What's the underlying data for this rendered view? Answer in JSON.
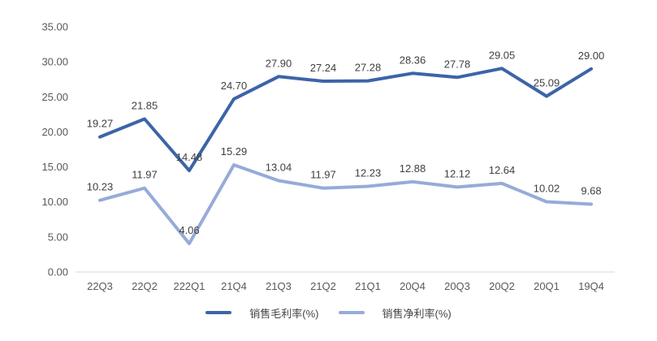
{
  "chart_data": {
    "type": "line",
    "title": "",
    "xlabel": "",
    "ylabel": "",
    "categories": [
      "22Q3",
      "22Q2",
      "222Q1",
      "21Q4",
      "21Q3",
      "21Q2",
      "21Q1",
      "20Q4",
      "20Q3",
      "20Q2",
      "20Q1",
      "19Q4"
    ],
    "series": [
      {
        "name": "销售毛利率(%)",
        "color": "#3C64A8",
        "values": [
          19.27,
          21.85,
          14.48,
          24.7,
          27.9,
          27.24,
          27.28,
          28.36,
          27.78,
          29.05,
          25.09,
          29.0
        ]
      },
      {
        "name": "销售净利率(%)",
        "color": "#96ABD8",
        "values": [
          10.23,
          11.97,
          4.06,
          15.29,
          13.04,
          11.97,
          12.23,
          12.88,
          12.12,
          12.64,
          10.02,
          9.68
        ]
      }
    ],
    "ylim": [
      0,
      35
    ],
    "ytick_step": 5,
    "ytick_labels": [
      "0.00",
      "5.00",
      "10.00",
      "15.00",
      "20.00",
      "25.00",
      "30.00",
      "35.00"
    ],
    "grid": false,
    "legend_position": "bottom",
    "data_labels_visible": true
  },
  "style": {
    "axis_line_color": "#D9D9D9",
    "tick_label_color": "#595959",
    "data_label_color": "#404040",
    "background": "#ffffff"
  }
}
